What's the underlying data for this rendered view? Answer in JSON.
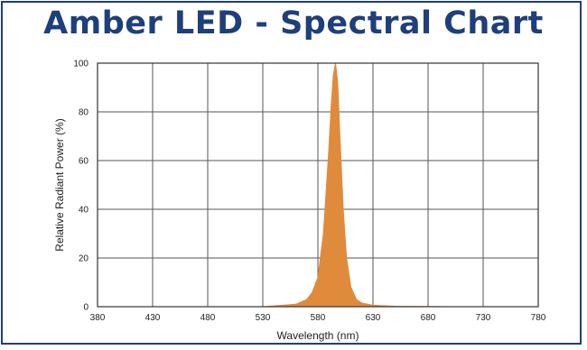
{
  "title": "Amber LED - Spectral Chart",
  "colors": {
    "title": "#1f3f7a",
    "border": "#1f3f7a",
    "fill": "#e08a3c",
    "grid": "#555555"
  },
  "chart_data": {
    "type": "area",
    "title": "Amber LED - Spectral Chart",
    "xlabel": "Wavelength (nm)",
    "ylabel": "Relative Radiant Power (%)",
    "xlim": [
      380,
      780
    ],
    "ylim": [
      0,
      100
    ],
    "xticks": [
      380,
      430,
      480,
      530,
      580,
      630,
      680,
      730,
      780
    ],
    "yticks": [
      0,
      20,
      40,
      60,
      80,
      100
    ],
    "grid": true,
    "series": [
      {
        "x": [
          380,
          530,
          560,
          570,
          575,
          580,
          585,
          590,
          592,
          594,
          596,
          598,
          600,
          603,
          606,
          610,
          615,
          620,
          630,
          650,
          700,
          780
        ],
        "values": [
          0,
          0,
          1,
          3,
          6,
          12,
          30,
          65,
          82,
          95,
          100,
          92,
          70,
          40,
          20,
          8,
          3,
          1.5,
          0.6,
          0.2,
          0,
          0
        ]
      }
    ]
  }
}
